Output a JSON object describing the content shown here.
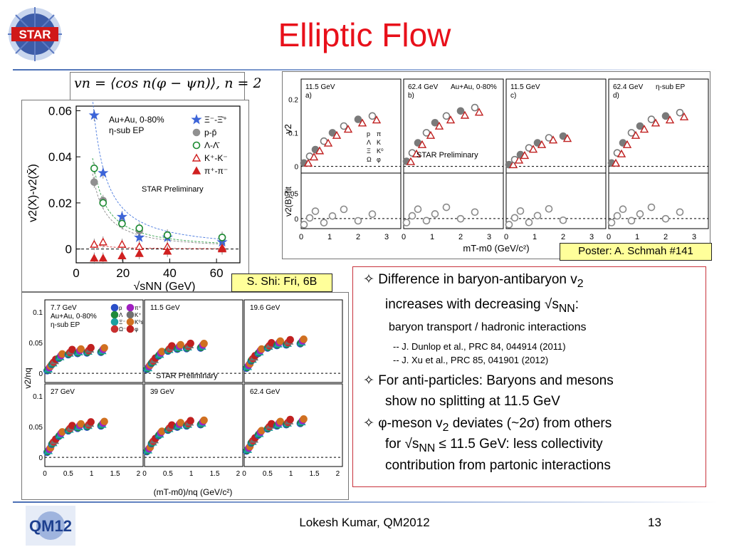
{
  "slide": {
    "title": "Elliptic Flow",
    "footer": "Lokesh Kumar, QM2012",
    "page_number": "13",
    "formula": "vn = ⟨cos n(φ − ψn)⟩, n = 2",
    "star_logo_text": "STAR",
    "qm_logo_text": "QM12",
    "poster_note": "Poster: A. Schmah #141",
    "shi_note": "S. Shi: Fri, 6B",
    "colors": {
      "title": "#e8101a",
      "box_border": "#c8323c",
      "callout_bg": "#ffff9a",
      "line": "#4a6fb5"
    }
  },
  "bullets": [
    {
      "symbol": "✧",
      "text": "Difference in baryon-antibaryon v",
      "sub": "2"
    },
    {
      "text": "increases with decreasing √s",
      "sub": "NN",
      "tail": ":"
    },
    {
      "text": "baryon transport / hadronic interactions"
    },
    {
      "text": "-- J. Dunlop et al., PRC 84, 044914 (2011)"
    },
    {
      "text": "-- J. Xu et al., PRC 85, 041901 (2012)"
    },
    {
      "symbol": "✧",
      "text": "For anti-particles: Baryons and mesons"
    },
    {
      "text": "show no splitting at 11.5 GeV"
    },
    {
      "symbol": "✧",
      "text": "φ-meson v",
      "sub": "2",
      "tail": " deviates (~2σ) from others"
    },
    {
      "text": "for √s",
      "sub": "NN",
      "tail": " ≤ 11.5 GeV: less collectivity"
    },
    {
      "text": "contribution from partonic interactions"
    }
  ],
  "chart_data": [
    {
      "type": "scatter",
      "xlabel": "√sNN (GeV)",
      "ylabel": "v2(X)-v2(X̄)",
      "xlim": [
        0,
        70
      ],
      "ylim": [
        -0.006,
        0.062
      ],
      "x_ticks": [
        0,
        20,
        40,
        60
      ],
      "y_ticks": [
        0,
        0.02,
        0.04,
        0.06
      ],
      "legend_title": [
        "Au+Au, 0-80%",
        "η-sub EP"
      ],
      "legend_position": "top-right",
      "annotation": "STAR Preliminary",
      "series": [
        {
          "name": "Ξ⁻-Ξ̄⁺",
          "marker": "star",
          "color": "#3c64d8",
          "filled": true,
          "x": [
            7.7,
            11.5,
            19.6,
            27,
            39,
            62.4
          ],
          "y": [
            0.058,
            0.033,
            0.014,
            0.005,
            0.005,
            0.003
          ]
        },
        {
          "name": "p-p̄",
          "marker": "circle",
          "color": "#909090",
          "filled": true,
          "x": [
            7.7,
            11.5,
            19.6,
            27,
            39,
            62.4
          ],
          "y": [
            0.029,
            0.021,
            0.011,
            0.008,
            0.006,
            0.005
          ]
        },
        {
          "name": "Λ-Λ̄",
          "marker": "circle",
          "color": "#1a8a30",
          "filled": false,
          "x": [
            7.7,
            11.5,
            19.6,
            27,
            39,
            62.4
          ],
          "y": [
            0.035,
            0.02,
            0.011,
            0.009,
            0.006,
            0.005
          ]
        },
        {
          "name": "K⁺-K⁻",
          "marker": "triangle",
          "color": "#d02020",
          "filled": false,
          "x": [
            7.7,
            11.5,
            19.6,
            27,
            39,
            62.4
          ],
          "y": [
            0.002,
            0.003,
            0.002,
            0.001,
            0.001,
            0.0005
          ]
        },
        {
          "name": "π⁺-π⁻",
          "marker": "triangle",
          "color": "#d02020",
          "filled": true,
          "x": [
            7.7,
            11.5,
            19.6,
            27,
            39,
            62.4
          ],
          "y": [
            -0.004,
            -0.004,
            -0.003,
            -0.002,
            -0.001,
            0.0
          ]
        }
      ]
    },
    {
      "type": "scatter",
      "xlabel": "mT-m0 (GeV/c²)",
      "ylabel_top": "v2",
      "ylabel_bottom": "v2(B)-fit",
      "x_ticks": [
        "0",
        "1",
        "2",
        "3"
      ],
      "y_ticks_top": [
        "0",
        "0.1",
        "0.2"
      ],
      "y_ticks_bottom": [
        "0",
        "0.05"
      ],
      "xlim": [
        0,
        3.5
      ],
      "ylim_top": [
        -0.02,
        0.26
      ],
      "ylim_bottom": [
        -0.02,
        0.09
      ],
      "panels": [
        {
          "label": "11.5 GeV",
          "tag": "a)",
          "x": [
            0.1,
            0.3,
            0.5,
            0.8,
            1.1,
            1.5,
            2.0,
            2.5
          ],
          "y": [
            0.01,
            0.03,
            0.05,
            0.075,
            0.1,
            0.12,
            0.14,
            0.15
          ]
        },
        {
          "label": "62.4 GeV",
          "tag": "b)",
          "sublabel": "Au+Au, 0-80%",
          "x": [
            0.1,
            0.3,
            0.5,
            0.8,
            1.1,
            1.5,
            2.0,
            2.5
          ],
          "y": [
            0.015,
            0.04,
            0.07,
            0.1,
            0.13,
            0.15,
            0.165,
            0.175
          ]
        },
        {
          "label": "11.5 GeV",
          "tag": "c)",
          "x": [
            0.1,
            0.3,
            0.5,
            0.8,
            1.1,
            1.5,
            2.0
          ],
          "y": [
            0.005,
            0.02,
            0.035,
            0.055,
            0.07,
            0.085,
            0.09
          ]
        },
        {
          "label": "62.4 GeV",
          "tag": "d)",
          "sublabel": "η-sub EP",
          "x": [
            0.1,
            0.3,
            0.5,
            0.8,
            1.1,
            1.5,
            2.0,
            2.5
          ],
          "y": [
            0.01,
            0.04,
            0.07,
            0.1,
            0.12,
            0.14,
            0.15,
            0.16
          ]
        }
      ],
      "legend_left": [
        "p",
        "Λ",
        "Ξ",
        "Ω"
      ],
      "legend_right": [
        "π",
        "K",
        "K⁰",
        "φ"
      ],
      "annotation": "STAR Preliminary"
    },
    {
      "type": "scatter",
      "xlabel": "(mT-m0)/nq (GeV/c²)",
      "ylabel": "v2/nq",
      "x_ticks": [
        "0",
        "0.5",
        "1",
        "1.5",
        "2"
      ],
      "y_ticks": [
        "0",
        "0.05",
        "0.1"
      ],
      "xlim": [
        0,
        2.1
      ],
      "ylim": [
        -0.015,
        0.12
      ],
      "legend_title": [
        "Au+Au, 0-80%",
        "η-sub EP"
      ],
      "legend_items": [
        "p",
        "Λ",
        "Ξ⁻",
        "Ω⁻",
        "π⁺",
        "K⁺",
        "K⁰s",
        "φ"
      ],
      "annotation": "STAR Preliminary",
      "panels": [
        {
          "label": "7.7 GeV",
          "x": [
            0.05,
            0.15,
            0.3,
            0.5,
            0.7,
            0.9,
            1.2
          ],
          "y": [
            0.008,
            0.018,
            0.028,
            0.034,
            0.036,
            0.037,
            0.038
          ]
        },
        {
          "label": "11.5 GeV",
          "x": [
            0.05,
            0.15,
            0.3,
            0.5,
            0.7,
            0.9,
            1.2
          ],
          "y": [
            0.01,
            0.02,
            0.032,
            0.04,
            0.043,
            0.044,
            0.045
          ]
        },
        {
          "label": "19.6 GeV",
          "x": [
            0.05,
            0.15,
            0.3,
            0.5,
            0.7,
            0.9,
            1.2
          ],
          "y": [
            0.012,
            0.024,
            0.036,
            0.045,
            0.049,
            0.05,
            0.052
          ]
        },
        {
          "label": "27 GeV",
          "x": [
            0.05,
            0.15,
            0.3,
            0.5,
            0.7,
            0.9,
            1.2
          ],
          "y": [
            0.012,
            0.025,
            0.038,
            0.047,
            0.051,
            0.053,
            0.055
          ]
        },
        {
          "label": "39 GeV",
          "x": [
            0.05,
            0.15,
            0.3,
            0.5,
            0.7,
            0.9,
            1.2
          ],
          "y": [
            0.013,
            0.026,
            0.039,
            0.048,
            0.053,
            0.055,
            0.057
          ]
        },
        {
          "label": "62.4 GeV",
          "x": [
            0.05,
            0.15,
            0.3,
            0.5,
            0.7,
            0.9,
            1.2
          ],
          "y": [
            0.014,
            0.027,
            0.04,
            0.05,
            0.055,
            0.057,
            0.059
          ]
        }
      ]
    }
  ]
}
